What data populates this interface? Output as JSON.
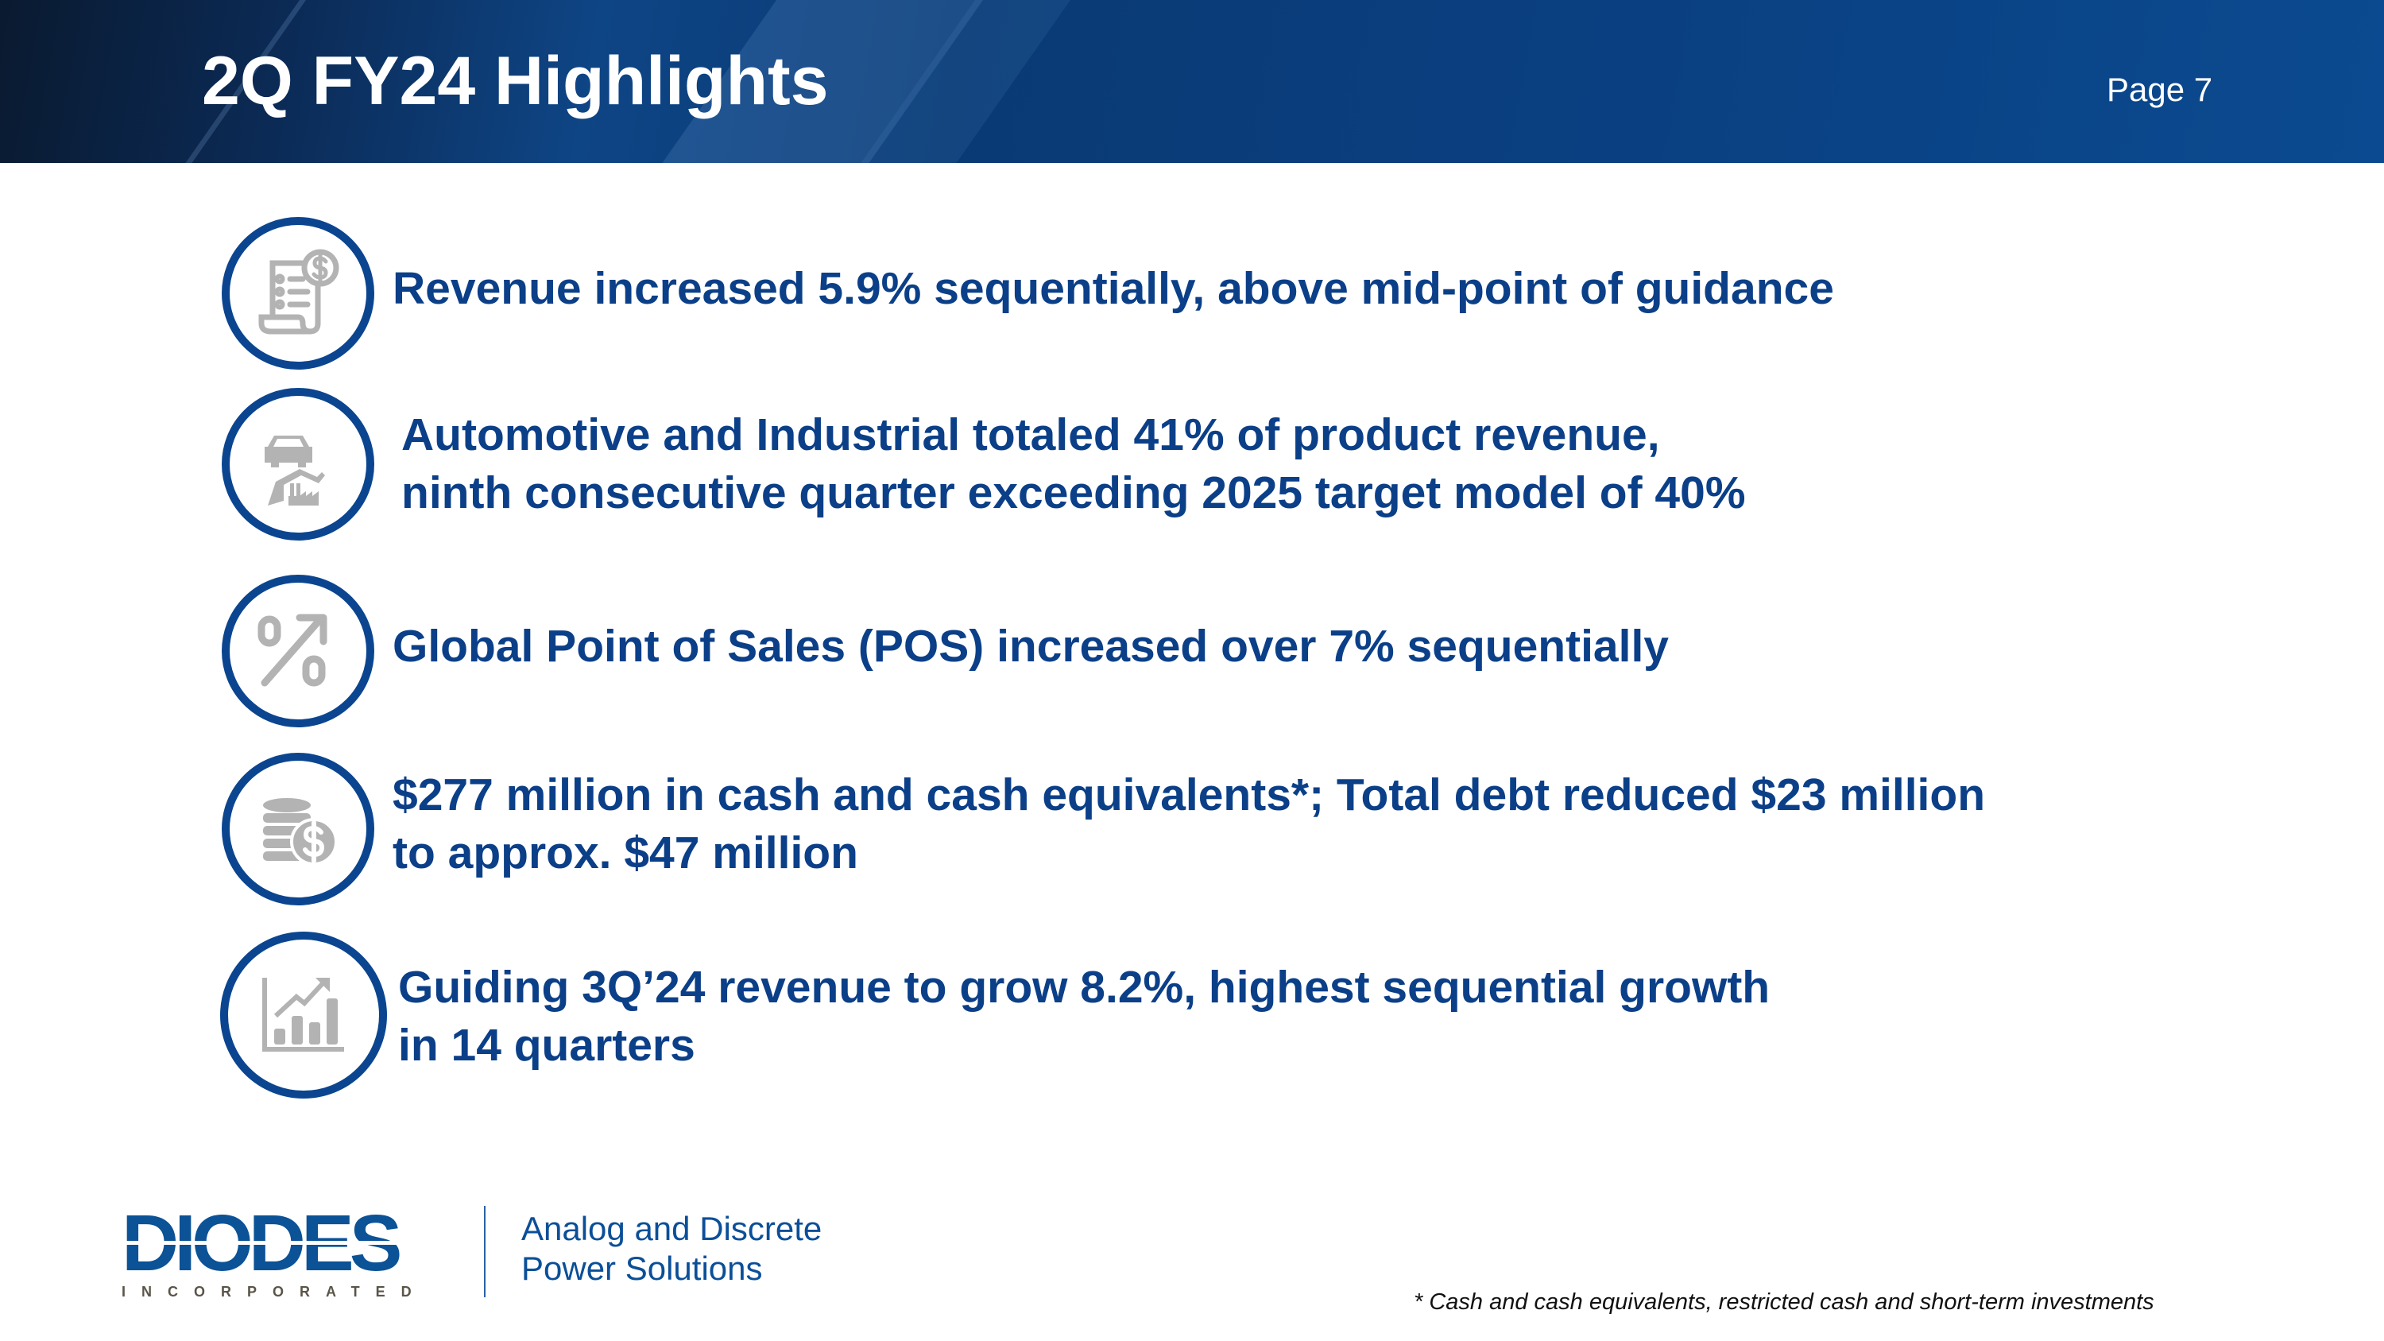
{
  "header": {
    "title": "2Q FY24 Highlights",
    "page": "Page 7"
  },
  "highlights": [
    {
      "icon": "invoice-dollar-icon",
      "lines": [
        "Revenue increased 5.9% sequentially, above mid-point of guidance"
      ]
    },
    {
      "icon": "car-factory-icon",
      "lines": [
        "Automotive and Industrial totaled 41% of product revenue,",
        "ninth consecutive quarter exceeding 2025 target  model of 40%"
      ]
    },
    {
      "icon": "percent-up-arrow-icon",
      "lines": [
        "Global Point of Sales (POS) increased over 7% sequentially"
      ]
    },
    {
      "icon": "coins-dollar-icon",
      "lines": [
        "$277 million in cash and cash equivalents*; Total debt reduced $23 million",
        "to approx. $47 million"
      ]
    },
    {
      "icon": "bar-chart-growth-icon",
      "lines": [
        "Guiding 3Q’24 revenue to grow 8.2%, highest sequential growth",
        "in 14 quarters"
      ]
    }
  ],
  "footer": {
    "logo_text": "DIODES",
    "logo_subtext": "INCORPORATED",
    "tagline": [
      "Analog and Discrete",
      "Power Solutions"
    ],
    "footnote": "* Cash and cash equivalents, restricted cash and short-term investments"
  },
  "colors": {
    "brand_blue": "#0b3f88",
    "icon_gray": "#b3b3b3",
    "circle_blue": "#0b4590"
  }
}
